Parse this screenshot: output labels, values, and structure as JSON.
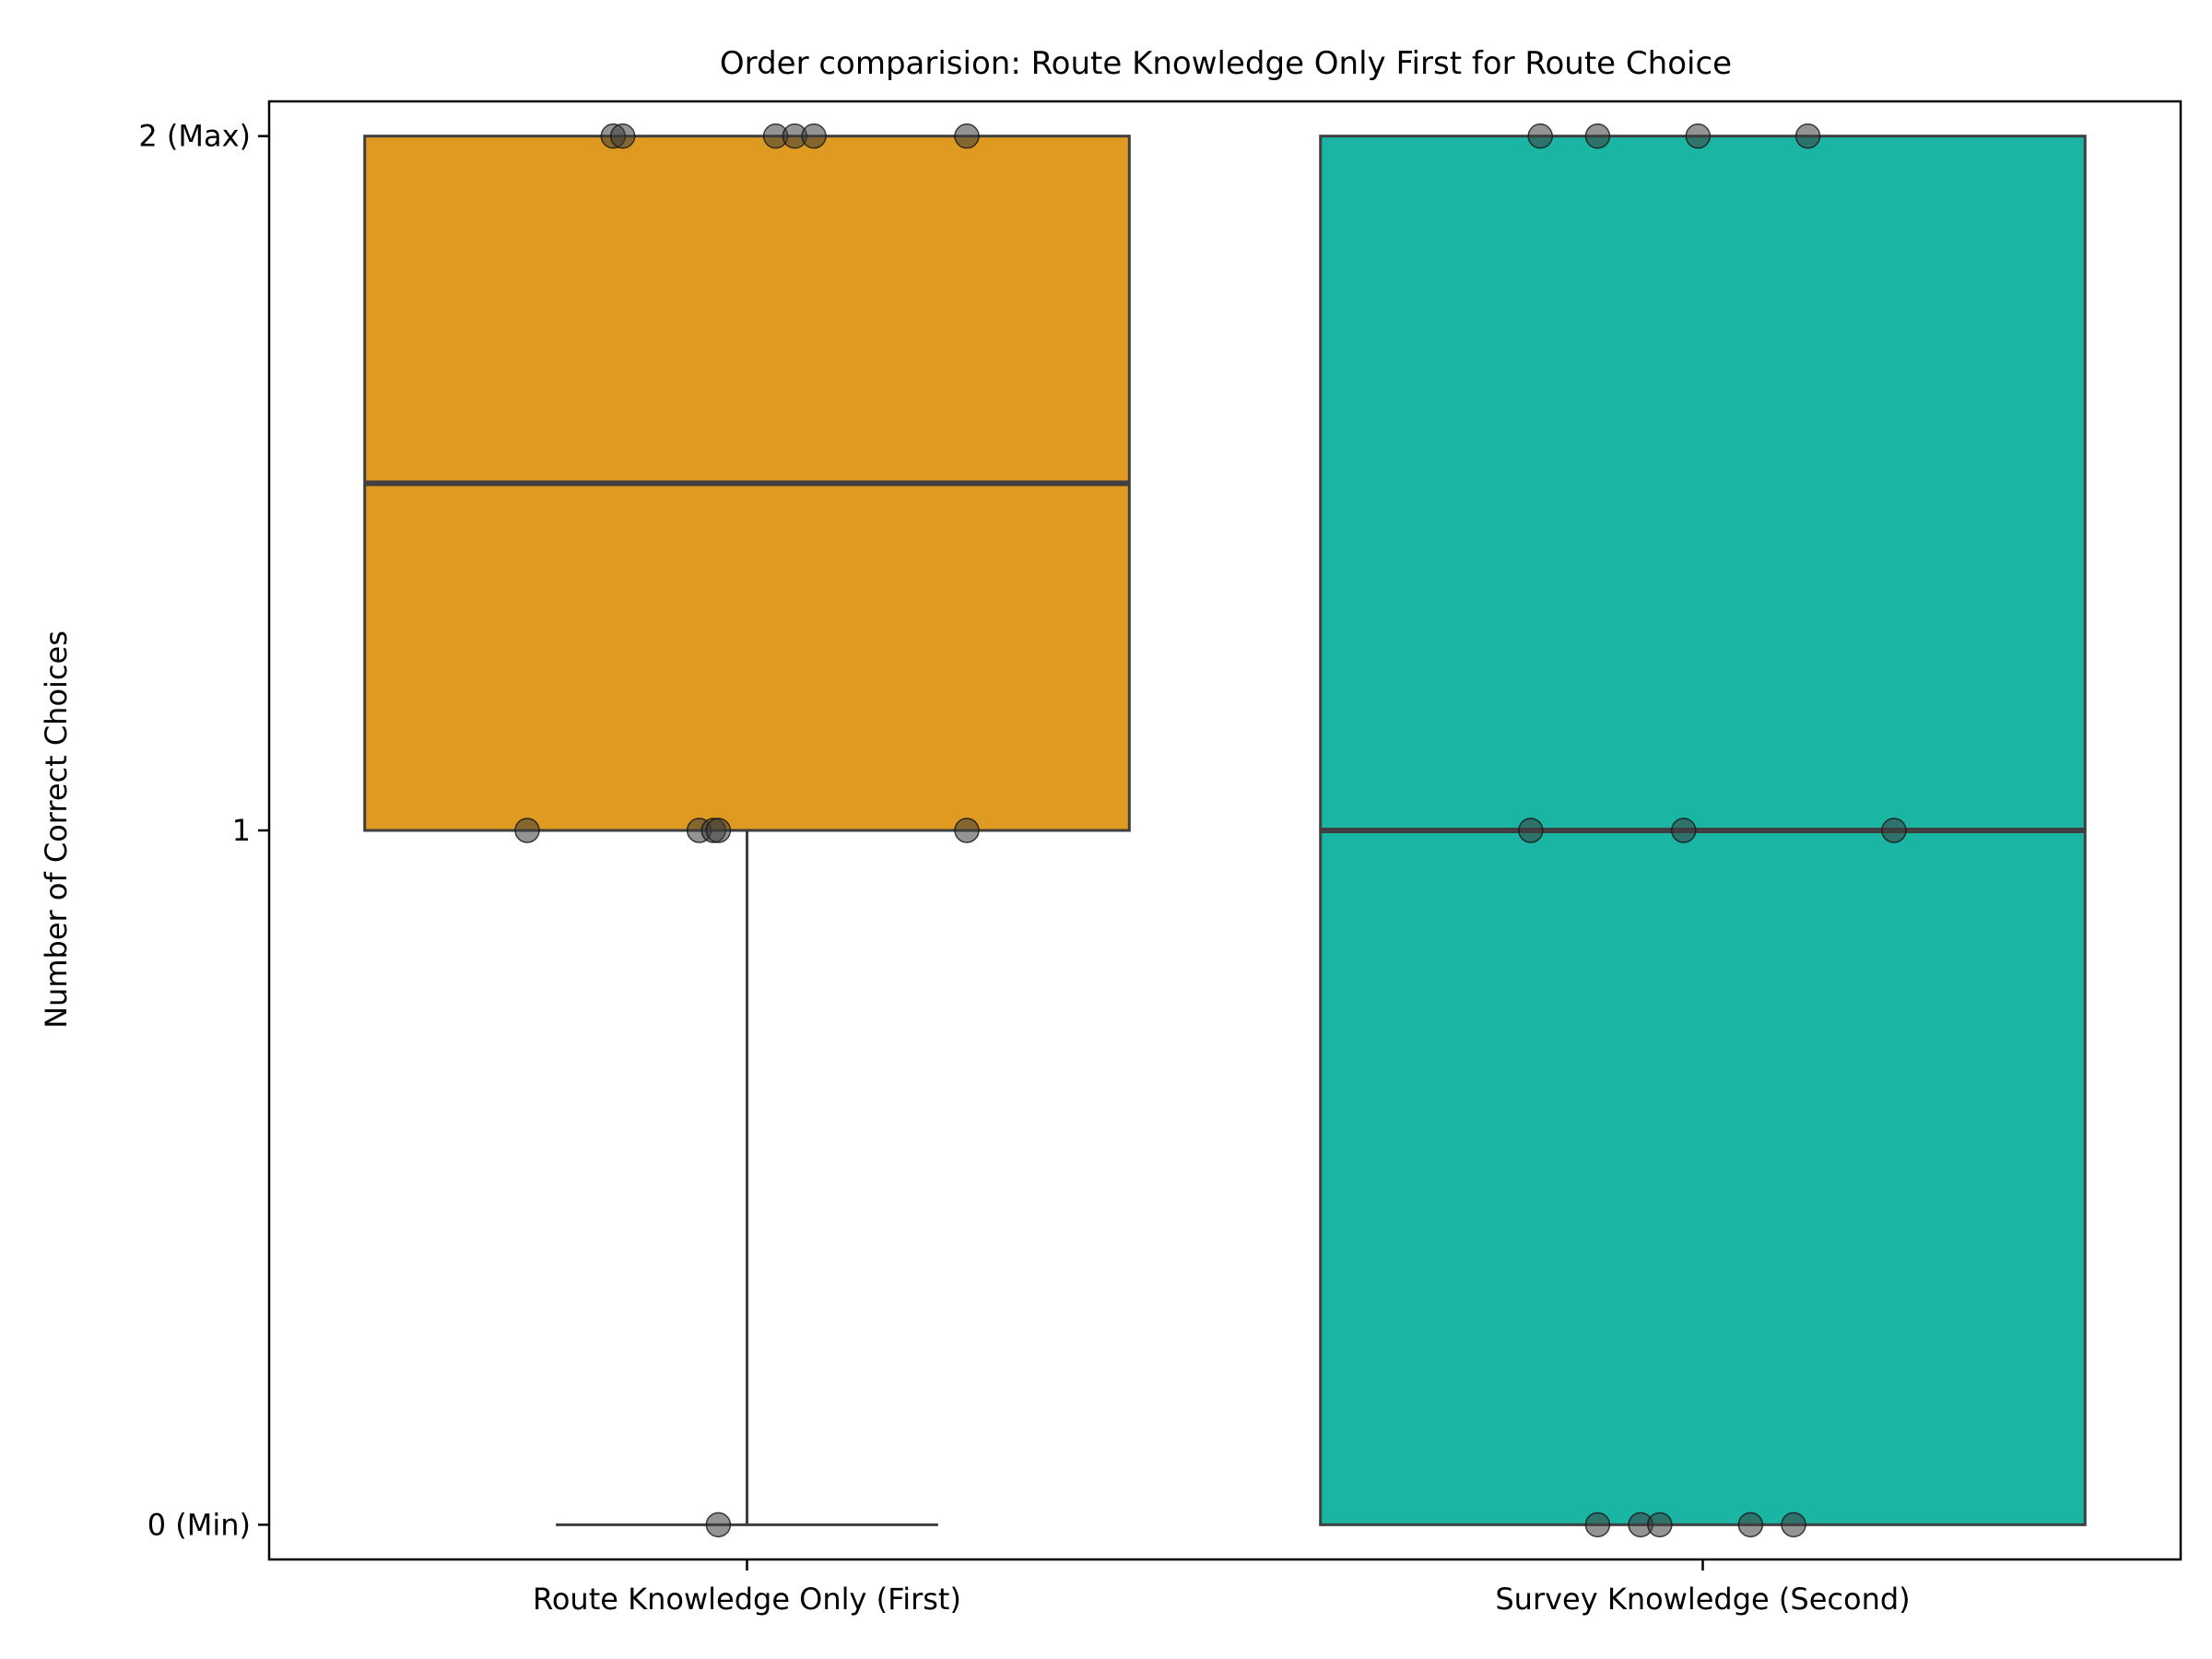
{
  "chart_data": {
    "type": "box",
    "title": "Order comparision: Route Knowledge Only First for Route Choice",
    "xlabel": "",
    "ylabel": "Number of Correct Choices",
    "ylim": [
      -0.05,
      2.05
    ],
    "yticks": [
      {
        "value": 0,
        "label": "0 (Min)"
      },
      {
        "value": 1,
        "label": "1"
      },
      {
        "value": 2,
        "label": "2 (Max)"
      }
    ],
    "categories": [
      "Route Knowledge Only (First)",
      "Survey Knowledge (Second)"
    ],
    "grid": false,
    "legend": "none",
    "series": [
      {
        "category": "Route Knowledge Only (First)",
        "color": "#DF9A21",
        "q1": 1,
        "median": 1.5,
        "q3": 2,
        "whisker_low": 0,
        "whisker_high": 2,
        "points": [
          {
            "x": -0.14,
            "y": 2
          },
          {
            "x": -0.13,
            "y": 2
          },
          {
            "x": 0.03,
            "y": 2
          },
          {
            "x": 0.05,
            "y": 2
          },
          {
            "x": 0.07,
            "y": 2
          },
          {
            "x": 0.23,
            "y": 2
          },
          {
            "x": -0.23,
            "y": 1
          },
          {
            "x": -0.05,
            "y": 1
          },
          {
            "x": -0.035,
            "y": 1
          },
          {
            "x": -0.03,
            "y": 1
          },
          {
            "x": 0.23,
            "y": 1
          },
          {
            "x": -0.03,
            "y": 0
          }
        ]
      },
      {
        "category": "Survey Knowledge (Second)",
        "color": "#1BB5A4",
        "q1": 0,
        "median": 1,
        "q3": 2,
        "whisker_low": 0,
        "whisker_high": 2,
        "points": [
          {
            "x": -0.17,
            "y": 2
          },
          {
            "x": -0.11,
            "y": 2
          },
          {
            "x": -0.005,
            "y": 2
          },
          {
            "x": 0.11,
            "y": 2
          },
          {
            "x": -0.18,
            "y": 1
          },
          {
            "x": -0.02,
            "y": 1
          },
          {
            "x": 0.2,
            "y": 1
          },
          {
            "x": -0.11,
            "y": 0
          },
          {
            "x": -0.065,
            "y": 0
          },
          {
            "x": -0.045,
            "y": 0
          },
          {
            "x": 0.05,
            "y": 0
          },
          {
            "x": 0.095,
            "y": 0
          }
        ]
      }
    ]
  }
}
